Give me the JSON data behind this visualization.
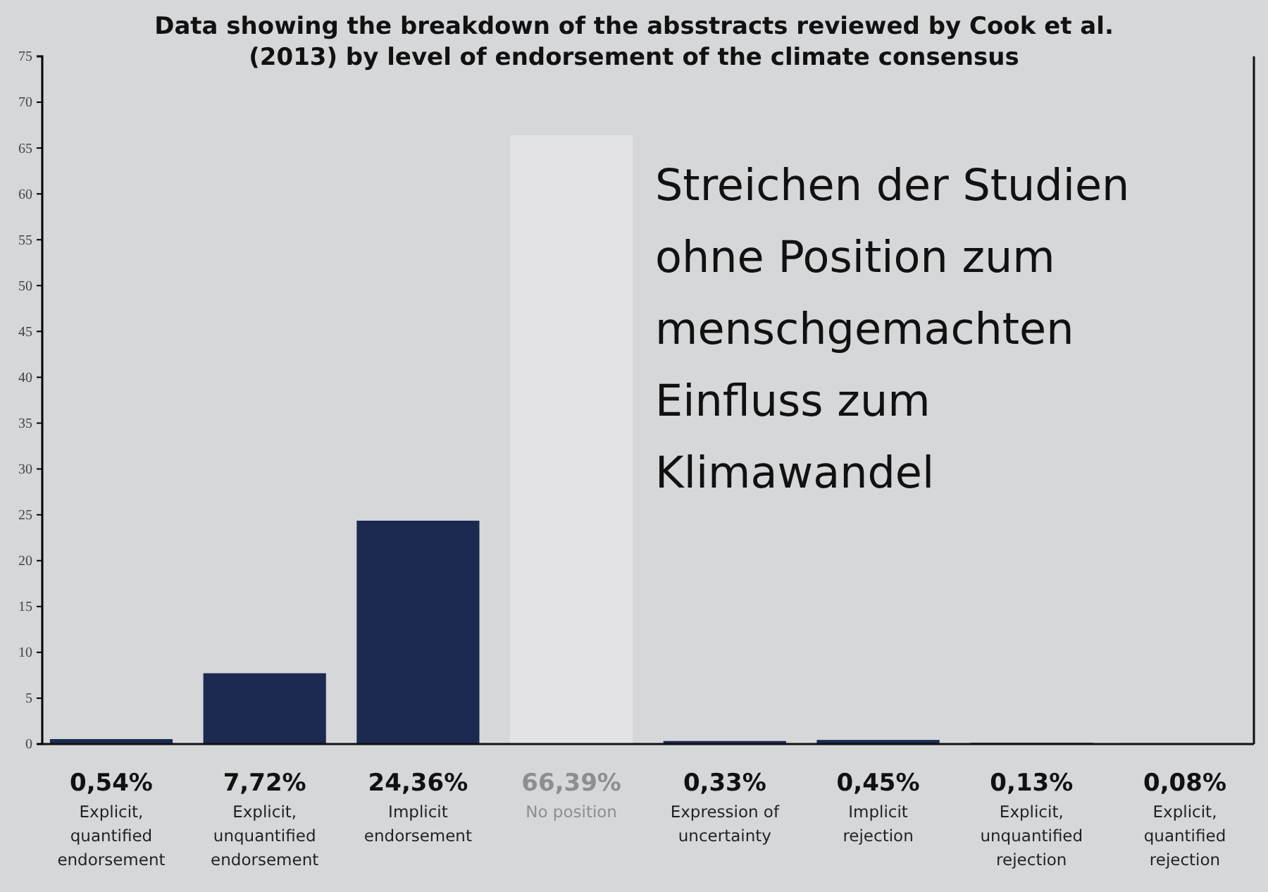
{
  "chart_data": {
    "type": "bar",
    "title": "Data showing the breakdown of the absstracts reviewed by Cook et al. (2013) by level of endorsement of the climate consensus",
    "categories": [
      "Explicit, quantified endorsement",
      "Explicit, unquantified endorsement",
      "Implicit endorsement",
      "No position",
      "Expression of uncertainty",
      "Implicit rejection",
      "Explicit, unquantified rejection",
      "Explicit, quantified rejection"
    ],
    "values": [
      0.54,
      7.72,
      24.36,
      66.39,
      0.33,
      0.45,
      0.13,
      0.08
    ],
    "value_labels": [
      "0,54%",
      "7,72%",
      "24,36%",
      "66,39%",
      "0,33%",
      "0,45%",
      "0,13%",
      "0,08%"
    ],
    "colors": [
      "#1c2a52",
      "#1c2a52",
      "#1c2a52",
      "#e3e3e5",
      "#1c2a52",
      "#1c2a52",
      "#1c2a52",
      "#1c2a52"
    ],
    "ylim": [
      0,
      75
    ],
    "yticks": [
      0,
      5,
      10,
      15,
      20,
      25,
      30,
      35,
      40,
      45,
      50,
      55,
      60,
      65,
      70,
      75
    ],
    "grid": false,
    "annotations": [
      "Streichen der Studien ohne Position zum menschgemachten Einfluss zum Klimawandel"
    ]
  }
}
